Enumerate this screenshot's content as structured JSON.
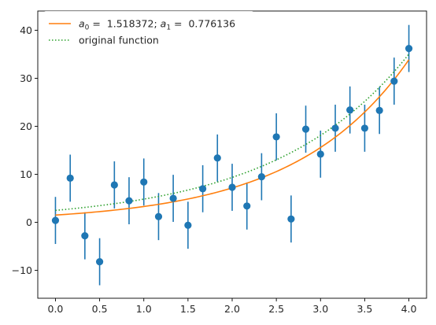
{
  "chart_data": {
    "type": "scatter",
    "title": "",
    "xlabel": "",
    "ylabel": "",
    "xlim": [
      -0.2,
      4.2
    ],
    "ylim": [
      -15.8,
      44
    ],
    "xticks": [
      0.0,
      0.5,
      1.0,
      1.5,
      2.0,
      2.5,
      3.0,
      3.5,
      4.0
    ],
    "xtick_labels": [
      "0.0",
      "0.5",
      "1.0",
      "1.5",
      "2.0",
      "2.5",
      "3.0",
      "3.5",
      "4.0"
    ],
    "yticks": [
      -10,
      0,
      10,
      20,
      30,
      40
    ],
    "ytick_labels": [
      "−10",
      "0",
      "10",
      "20",
      "30",
      "40"
    ],
    "grid": false,
    "legend_position": "top-left",
    "colors": {
      "data": "#1f77b4",
      "fit": "#ff7f0e",
      "original": "#2ca02c"
    },
    "data_points": {
      "x": [
        0.0,
        0.167,
        0.333,
        0.5,
        0.667,
        0.833,
        1.0,
        1.167,
        1.333,
        1.5,
        1.667,
        1.833,
        2.0,
        2.167,
        2.333,
        2.5,
        2.667,
        2.833,
        3.0,
        3.167,
        3.333,
        3.5,
        3.667,
        3.833,
        4.0
      ],
      "y": [
        0.4,
        9.2,
        -2.8,
        -8.2,
        7.8,
        4.5,
        8.4,
        1.2,
        5.0,
        -0.6,
        7.0,
        13.4,
        7.3,
        3.4,
        9.5,
        17.8,
        0.7,
        19.4,
        14.2,
        19.6,
        23.4,
        19.6,
        23.3,
        29.4,
        36.2
      ],
      "yerr": 4.9
    },
    "series": [
      {
        "name": "fit",
        "label_parts": [
          "a",
          "0",
          " =  1.518372; ",
          "a",
          "1",
          " =  0.776136"
        ],
        "a0": 1.518372,
        "a1": 0.776136,
        "style": "solid"
      },
      {
        "name": "original function",
        "a0": 2.5,
        "a1": 0.66,
        "style": "dotted"
      }
    ]
  }
}
